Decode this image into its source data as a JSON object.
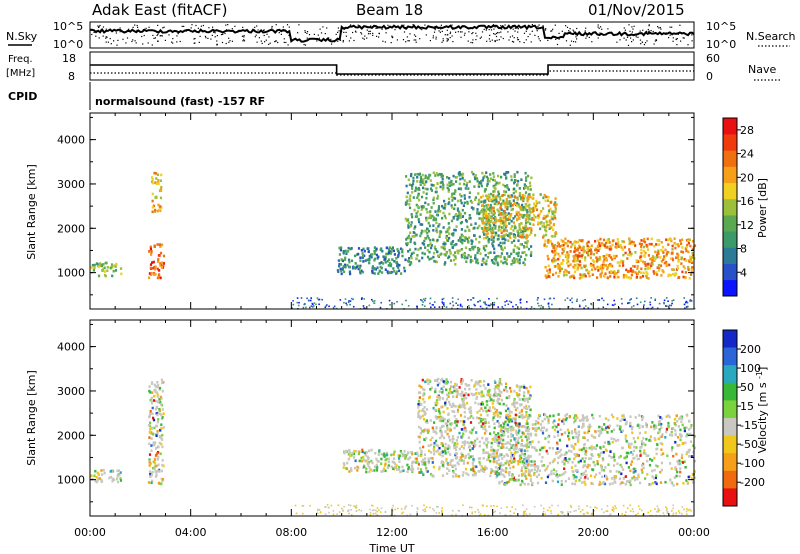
{
  "header": {
    "station": "Adak East (fitACF)",
    "beam": "Beam 18",
    "date": "01/Nov/2015"
  },
  "panels": {
    "nsky": {
      "left_label": "N.Sky",
      "right_label": "N.Search",
      "left_ticks": [
        "10^5",
        "10^0"
      ],
      "right_ticks": [
        "10^5",
        "10^0"
      ]
    },
    "freq": {
      "left_label_1": "Freq.",
      "left_label_2": "[MHz]",
      "left_ticks": [
        "18",
        "8"
      ],
      "right_label": "Nave",
      "right_ticks": [
        "60",
        "0"
      ]
    },
    "cpid": {
      "left_label": "CPID",
      "text": "normalsound (fast) -157 RF"
    }
  },
  "chart_data": [
    {
      "type": "heatmap",
      "title": "",
      "ylabel": "Slant Range [km]",
      "xlabel": "",
      "x_ticks": [
        "00:00",
        "04:00",
        "08:00",
        "12:00",
        "16:00",
        "20:00",
        "00:00"
      ],
      "y_ticks": [
        "1000",
        "2000",
        "3000",
        "4000"
      ],
      "xlim_hours": [
        0,
        24
      ],
      "ylim_km": [
        180,
        4600
      ],
      "colorbar": {
        "label": "Power [dB]",
        "ticks": [
          "4",
          "8",
          "12",
          "16",
          "20",
          "24",
          "28"
        ],
        "range": [
          0,
          30
        ],
        "colors": [
          "#0a14ff",
          "#2850c8",
          "#2c7a96",
          "#3a9a6a",
          "#5aa850",
          "#9cc03c",
          "#f0d020",
          "#f5a018",
          "#f07010",
          "#f03c0c",
          "#e81010"
        ]
      },
      "features": [
        {
          "t0": 0.0,
          "t1": 1.2,
          "r0": 950,
          "r1": 1250,
          "level": 0.45
        },
        {
          "t0": 2.3,
          "t1": 2.9,
          "r0": 900,
          "r1": 1700,
          "level": 0.85
        },
        {
          "t0": 2.4,
          "t1": 2.8,
          "r0": 2400,
          "r1": 3300,
          "level": 0.65
        },
        {
          "t0": 9.8,
          "t1": 12.5,
          "r0": 1000,
          "r1": 1600,
          "level": 0.25
        },
        {
          "t0": 12.5,
          "t1": 17.5,
          "r0": 1200,
          "r1": 3300,
          "level": 0.35
        },
        {
          "t0": 15.5,
          "t1": 18.5,
          "r0": 1800,
          "r1": 2800,
          "level": 0.6
        },
        {
          "t0": 18.0,
          "t1": 24.0,
          "r0": 900,
          "r1": 1800,
          "level": 0.7
        }
      ]
    },
    {
      "type": "heatmap",
      "title": "",
      "ylabel": "Slant Range [km]",
      "xlabel": "Time UT",
      "x_ticks": [
        "00:00",
        "04:00",
        "08:00",
        "12:00",
        "16:00",
        "20:00",
        "00:00"
      ],
      "y_ticks": [
        "1000",
        "2000",
        "3000",
        "4000"
      ],
      "xlim_hours": [
        0,
        24
      ],
      "ylim_km": [
        180,
        4600
      ],
      "colorbar": {
        "label": "Velocity [m s^-1]",
        "ticks": [
          "200",
          "100",
          "50",
          "15",
          "-15",
          "-50",
          "-100",
          "-200"
        ],
        "colors": [
          "#1428c8",
          "#2a66d8",
          "#2aa8c0",
          "#38b838",
          "#7ad23c",
          "#c8c8c0",
          "#f0c81c",
          "#f5a018",
          "#f06a10",
          "#e81010"
        ]
      },
      "features": [
        {
          "t0": 0.0,
          "t1": 1.2,
          "r0": 950,
          "r1": 1250,
          "level": 0.5
        },
        {
          "t0": 2.3,
          "t1": 2.9,
          "r0": 900,
          "r1": 3300,
          "level": 0.5
        },
        {
          "t0": 10.0,
          "t1": 13.0,
          "r0": 1200,
          "r1": 1700,
          "level": 0.35
        },
        {
          "t0": 13.0,
          "t1": 17.5,
          "r0": 1100,
          "r1": 3300,
          "level": 0.45
        },
        {
          "t0": 16.0,
          "t1": 24.0,
          "r0": 900,
          "r1": 2500,
          "level": 0.5
        }
      ]
    }
  ]
}
